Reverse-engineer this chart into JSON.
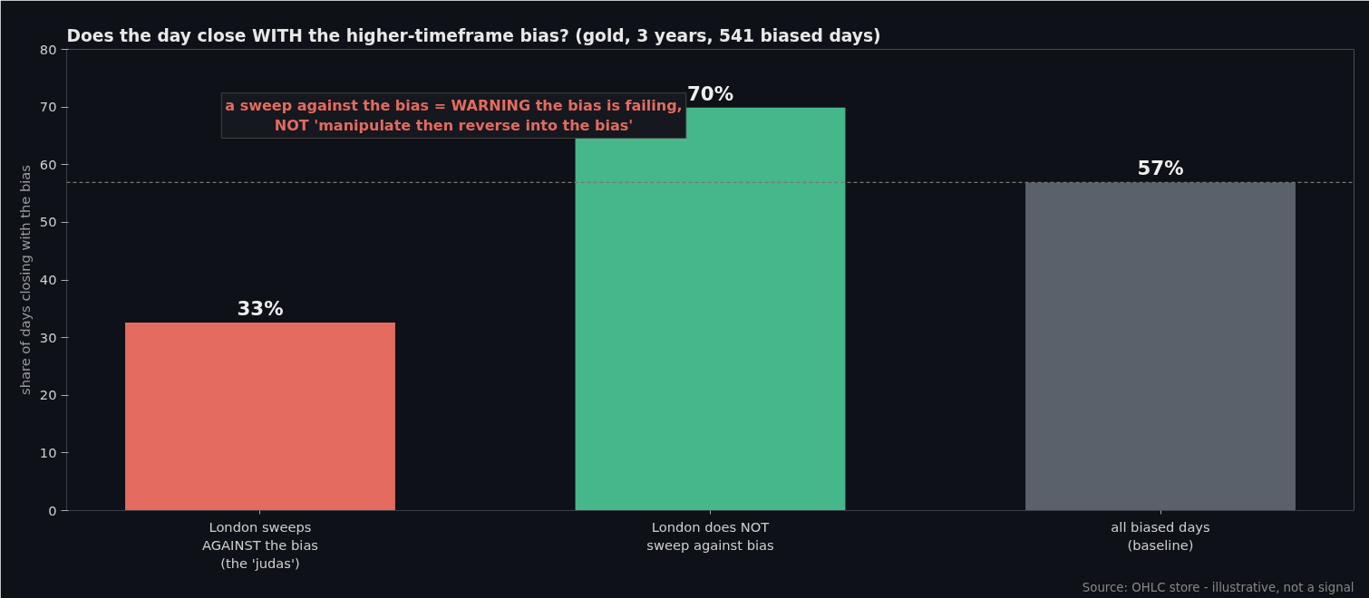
{
  "chart_data": {
    "type": "bar",
    "title": "Does the day close WITH the higher-timeframe bias?  (gold, 3 years, 541 biased days)",
    "ylabel": "share of days closing with the bias",
    "categories": [
      "London sweeps\nAGAINST the bias\n(the 'judas')",
      "London does NOT\nsweep against bias",
      "all biased days\n(baseline)"
    ],
    "values": [
      32.6,
      69.9,
      56.9
    ],
    "colors": [
      "#e36b5f",
      "#46b78a",
      "#5a616b"
    ],
    "value_labels": [
      "33%",
      "70%",
      "57%"
    ],
    "ylim": [
      0,
      80
    ],
    "yticks": [
      0,
      10,
      20,
      30,
      40,
      50,
      60,
      70,
      80
    ],
    "grid": false,
    "ref_lines": [
      {
        "axis": "y",
        "value": 56.9,
        "color": "#777777",
        "line_style": "dashed"
      }
    ],
    "annotations": [
      "a sweep against the bias = WARNING the bias is failing,\nNOT 'manipulate then reverse into the bias'",
      "Source: OHLC store - illustrative, not a signal"
    ]
  }
}
